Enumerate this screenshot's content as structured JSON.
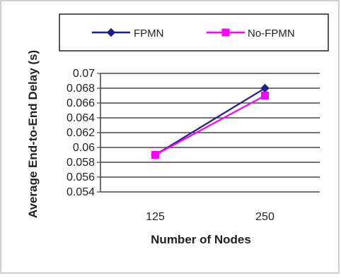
{
  "chart_data": {
    "type": "line",
    "categories": [
      "125",
      "250"
    ],
    "series": [
      {
        "name": "FPMN",
        "values": [
          0.059,
          0.068
        ],
        "color": "#1f1f8a",
        "marker": "diamond"
      },
      {
        "name": "No-FPMN",
        "values": [
          0.059,
          0.067
        ],
        "color": "#ff00ff",
        "marker": "square"
      }
    ],
    "xlabel": "Number of Nodes",
    "ylabel": "Average End-to-End Delay  (s)",
    "ylim": [
      0.054,
      0.07
    ],
    "yticks": [
      "0.054",
      "0.056",
      "0.058",
      "0.06",
      "0.062",
      "0.064",
      "0.066",
      "0.068",
      "0.07"
    ],
    "grid": true,
    "legend_position": "top"
  }
}
